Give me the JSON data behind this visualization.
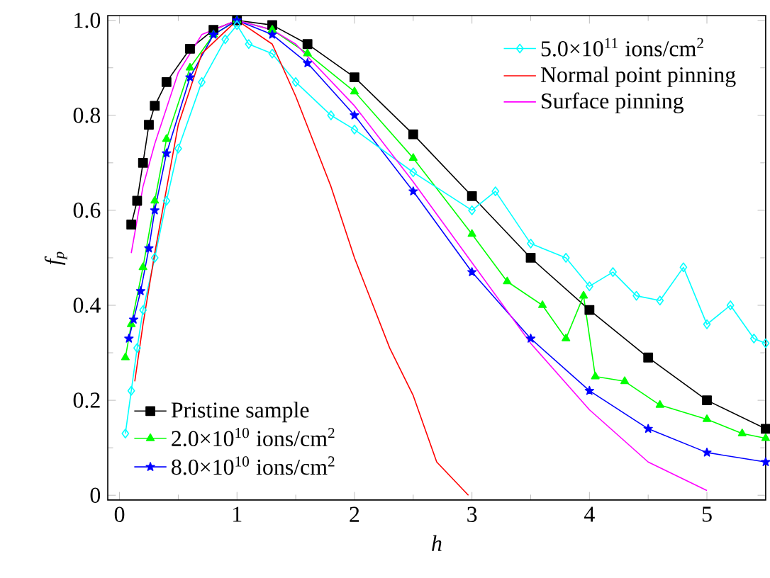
{
  "chart_data": {
    "type": "line",
    "xlabel": "h",
    "ylabel": "f$_{p}$",
    "xlim": [
      -0.1,
      5.5
    ],
    "ylim": [
      -0.01,
      1.01
    ],
    "xticks": [
      0,
      1,
      2,
      3,
      4,
      5
    ],
    "yticks": [
      {
        "value": 0,
        "label": "0"
      },
      {
        "value": 0.2,
        "label": "0.2"
      },
      {
        "value": 0.4,
        "label": "0.4"
      },
      {
        "value": 0.6,
        "label": "0.6"
      },
      {
        "value": 0.8,
        "label": "0.8"
      },
      {
        "value": 1.0,
        "label": "1.0"
      }
    ],
    "grid": false,
    "legend": [
      "bottom left",
      "top right"
    ],
    "line_style": "solid",
    "series": [
      {
        "name": "Pristine sample",
        "color": "#000000",
        "marker": "square",
        "x": [
          0.1,
          0.15,
          0.2,
          0.25,
          0.3,
          0.4,
          0.6,
          0.8,
          1.0,
          1.3,
          1.6,
          2.0,
          2.5,
          3.0,
          3.5,
          4.0,
          4.5,
          5.0,
          5.5
        ],
        "values": [
          0.57,
          0.62,
          0.7,
          0.78,
          0.82,
          0.87,
          0.94,
          0.98,
          1.0,
          0.99,
          0.95,
          0.88,
          0.76,
          0.63,
          0.5,
          0.39,
          0.29,
          0.2,
          0.14
        ]
      },
      {
        "name": "2.0×10$^{10}$ ions/cm$^{2}$",
        "color": "#00ff00",
        "marker": "triangle",
        "x": [
          0.05,
          0.1,
          0.2,
          0.3,
          0.4,
          0.6,
          0.8,
          1.0,
          1.3,
          1.6,
          2.0,
          2.5,
          3.0,
          3.3,
          3.6,
          3.8,
          3.95,
          4.05,
          4.3,
          4.6,
          5.0,
          5.3,
          5.5
        ],
        "values": [
          0.29,
          0.36,
          0.48,
          0.62,
          0.75,
          0.9,
          0.97,
          1.0,
          0.98,
          0.93,
          0.85,
          0.71,
          0.55,
          0.45,
          0.4,
          0.33,
          0.42,
          0.25,
          0.24,
          0.19,
          0.16,
          0.13,
          0.12
        ]
      },
      {
        "name": "8.0×10$^{10}$ ions/cm$^{2}$",
        "color": "#0000ff",
        "marker": "star",
        "x": [
          0.08,
          0.12,
          0.18,
          0.25,
          0.3,
          0.4,
          0.6,
          0.8,
          1.0,
          1.3,
          1.6,
          2.0,
          2.5,
          3.0,
          3.5,
          4.0,
          4.5,
          5.0,
          5.5
        ],
        "values": [
          0.33,
          0.37,
          0.43,
          0.52,
          0.6,
          0.72,
          0.88,
          0.97,
          1.0,
          0.97,
          0.91,
          0.8,
          0.64,
          0.47,
          0.33,
          0.22,
          0.14,
          0.09,
          0.07
        ]
      },
      {
        "name": "5.0×10$^{11}$ ions/cm$^{2}$",
        "color": "#00ffff",
        "marker": "diamond",
        "x": [
          0.05,
          0.1,
          0.15,
          0.2,
          0.3,
          0.4,
          0.5,
          0.7,
          0.9,
          1.0,
          1.1,
          1.3,
          1.5,
          1.8,
          2.0,
          2.5,
          3.0,
          3.2,
          3.5,
          3.8,
          4.0,
          4.2,
          4.4,
          4.6,
          4.8,
          5.0,
          5.2,
          5.4,
          5.5
        ],
        "values": [
          0.13,
          0.22,
          0.31,
          0.39,
          0.5,
          0.62,
          0.73,
          0.87,
          0.96,
          0.99,
          0.95,
          0.93,
          0.87,
          0.8,
          0.77,
          0.68,
          0.6,
          0.64,
          0.53,
          0.5,
          0.44,
          0.47,
          0.42,
          0.41,
          0.48,
          0.36,
          0.4,
          0.33,
          0.32
        ]
      },
      {
        "name": "Normal point pinning",
        "color": "#ff0000",
        "marker": "none",
        "x": [
          0.13,
          0.2,
          0.3,
          0.5,
          0.7,
          1.0,
          1.3,
          1.5,
          1.8,
          2.0,
          2.3,
          2.5,
          2.7,
          2.97
        ],
        "values": [
          0.24,
          0.36,
          0.51,
          0.78,
          0.93,
          1.0,
          0.95,
          0.84,
          0.65,
          0.5,
          0.31,
          0.21,
          0.07,
          0.0
        ]
      },
      {
        "name": "Surface pinning",
        "color": "#ff00ff",
        "marker": "none",
        "x": [
          0.1,
          0.2,
          0.3,
          0.5,
          0.7,
          1.0,
          1.3,
          1.5,
          2.0,
          2.5,
          3.0,
          3.5,
          4.0,
          4.5,
          5.0
        ],
        "values": [
          0.51,
          0.65,
          0.74,
          0.89,
          0.97,
          1.0,
          0.98,
          0.95,
          0.82,
          0.66,
          0.49,
          0.32,
          0.18,
          0.07,
          0.01
        ]
      }
    ]
  }
}
